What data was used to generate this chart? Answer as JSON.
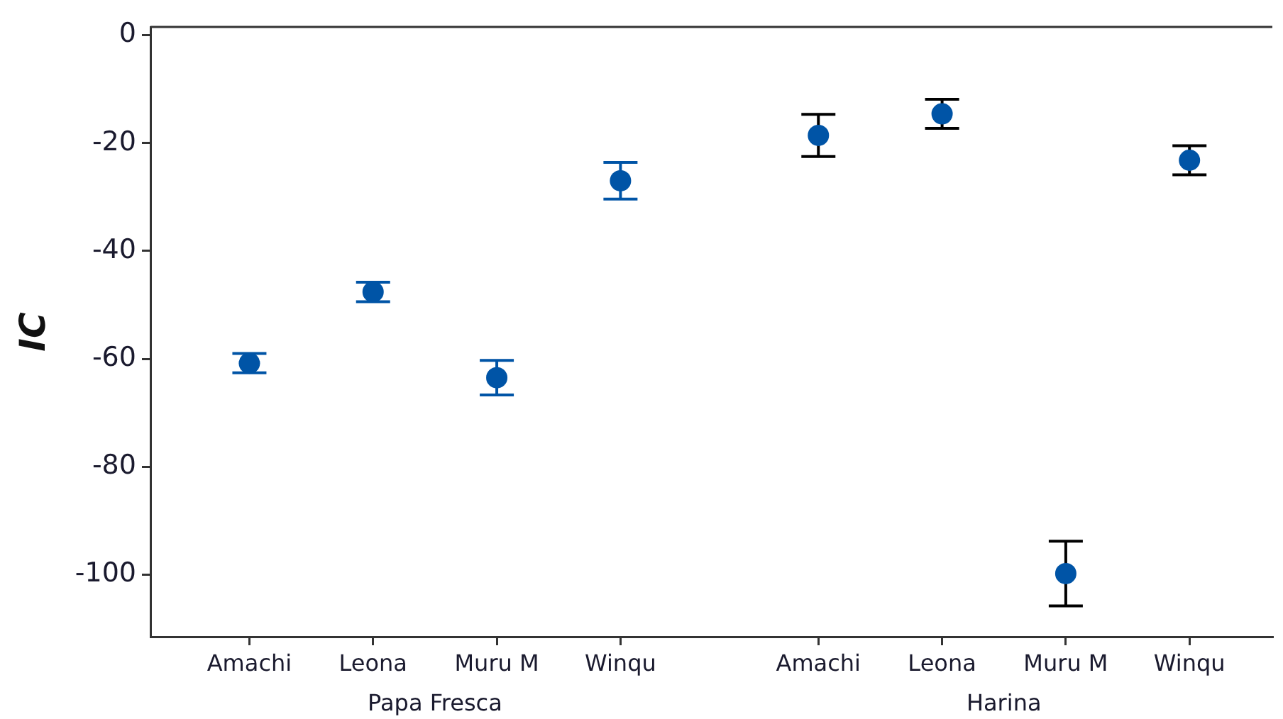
{
  "chart_data": {
    "type": "scatter",
    "ylabel": "IC",
    "categories": [
      "Amachi",
      "Leona",
      "Muru M",
      "Winqu",
      null,
      "Amachi",
      "Leona",
      "Muru M",
      "Winqu"
    ],
    "series": [
      {
        "color": "#0054a6",
        "values": [
          -60.8,
          -47.6,
          -63.5,
          -27,
          null,
          null,
          null,
          null,
          null
        ],
        "errors": [
          1.8,
          1.8,
          3.2,
          3.4,
          null,
          null,
          null,
          null,
          null
        ]
      },
      {
        "color": "#000000",
        "colors": [
          null,
          null,
          null,
          null,
          null,
          "#0054a6",
          "#0054a6",
          "#0054a6",
          "#0054a6"
        ],
        "values": [
          null,
          null,
          null,
          null,
          null,
          -18.6,
          -14.6,
          -99.8,
          -23.2
        ],
        "errors": [
          null,
          null,
          null,
          null,
          null,
          3.9,
          2.7,
          6,
          2.7
        ]
      }
    ],
    "ylim": [
      -111.5,
      1.5
    ],
    "yticks": [
      0,
      -20,
      -40,
      -60,
      -80,
      -100
    ],
    "marker": "circle",
    "annotations": [
      "Papa Fresca",
      "Harina"
    ]
  }
}
